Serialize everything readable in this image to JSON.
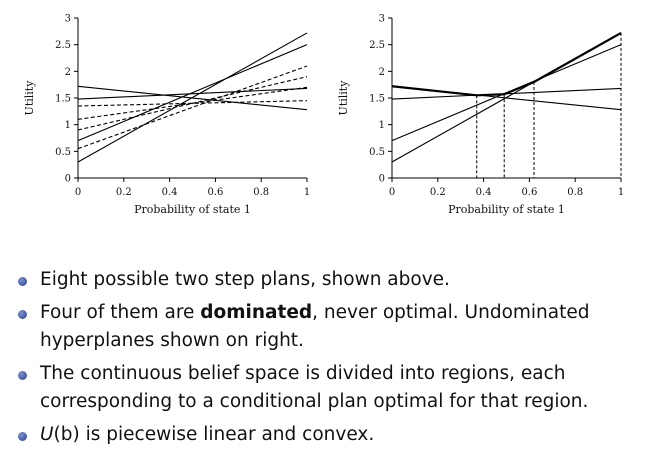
{
  "chart_data": [
    {
      "type": "line",
      "title": "",
      "xlabel": "Probability of state 1",
      "ylabel": "Utility",
      "xlim": [
        0,
        1
      ],
      "ylim": [
        0,
        3
      ],
      "xticks": [
        "0",
        "0.2",
        "0.4",
        "0.6",
        "0.8",
        "1"
      ],
      "yticks": [
        "0",
        "0.5",
        "1",
        "1.5",
        "2",
        "2.5",
        "3"
      ],
      "lines": [
        {
          "style": "solid",
          "y0": 0.3,
          "y1": 2.72
        },
        {
          "style": "solid",
          "y0": 0.7,
          "y1": 2.5
        },
        {
          "style": "solid",
          "y0": 1.72,
          "y1": 1.28
        },
        {
          "style": "solid",
          "y0": 1.48,
          "y1": 1.68
        },
        {
          "style": "dashed",
          "y0": 0.55,
          "y1": 2.1
        },
        {
          "style": "dashed",
          "y0": 0.9,
          "y1": 1.9
        },
        {
          "style": "dashed",
          "y0": 1.1,
          "y1": 1.7
        },
        {
          "style": "dashed",
          "y0": 1.35,
          "y1": 1.45
        }
      ]
    },
    {
      "type": "line",
      "title": "",
      "xlabel": "Probability of state 1",
      "ylabel": "Utility",
      "xlim": [
        0,
        1
      ],
      "ylim": [
        0,
        3
      ],
      "xticks": [
        "0",
        "0.2",
        "0.4",
        "0.6",
        "0.8",
        "1"
      ],
      "yticks": [
        "0",
        "0.5",
        "1",
        "1.5",
        "2",
        "2.5",
        "3"
      ],
      "lines": [
        {
          "style": "solid",
          "y0": 0.3,
          "y1": 2.72
        },
        {
          "style": "solid",
          "y0": 0.7,
          "y1": 2.5
        },
        {
          "style": "solid",
          "y0": 1.72,
          "y1": 1.28
        },
        {
          "style": "solid",
          "y0": 1.48,
          "y1": 1.68
        }
      ],
      "upper_envelope": [
        [
          0,
          1.72
        ],
        [
          0.37,
          1.55
        ],
        [
          0.49,
          1.57
        ],
        [
          0.62,
          1.8
        ],
        [
          1,
          2.72
        ]
      ],
      "region_boundaries": [
        0.37,
        0.49,
        0.62,
        1
      ]
    }
  ],
  "bullets": [
    {
      "pre": "Eight possible two step plans, shown above.",
      "bold": "",
      "post": ""
    },
    {
      "pre": "Four of them are ",
      "bold": "dominated",
      "post": ", never optimal. Undominated hyperplanes shown on right."
    },
    {
      "pre": "The continuous belief space is divided into regions, each corresponding to a conditional plan optimal for that region.",
      "bold": "",
      "post": ""
    },
    {
      "pre": "",
      "bold": "",
      "post": " is piecewise linear and convex.",
      "math": "U",
      "math_arg": "(b)"
    }
  ]
}
